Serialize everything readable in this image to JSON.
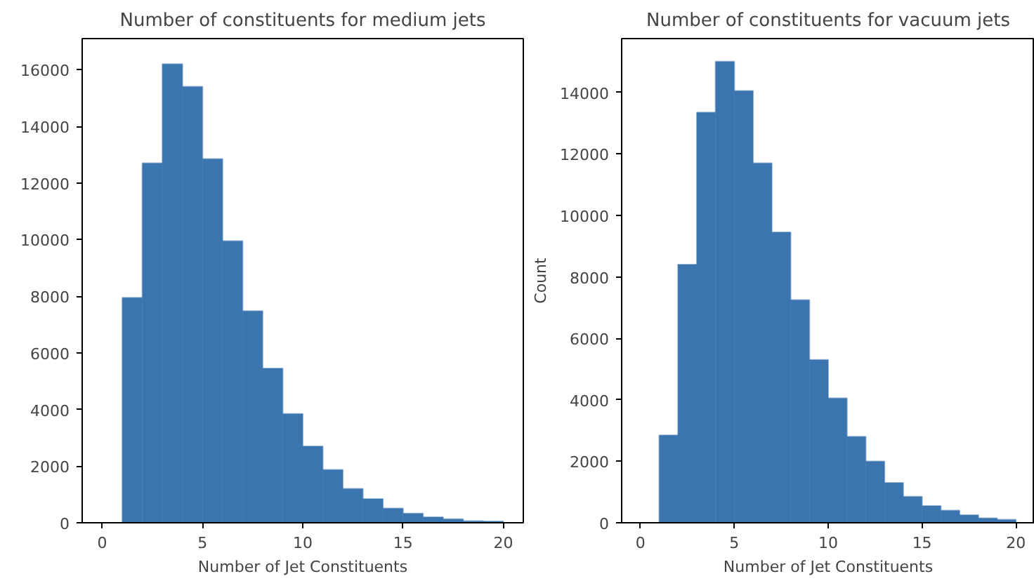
{
  "chart_data": [
    {
      "type": "histogram",
      "title": "Number of constituents for medium jets",
      "xlabel": "Number of Jet Constituents",
      "bins": [
        1,
        2,
        3,
        4,
        5,
        6,
        7,
        8,
        9,
        10,
        11,
        12,
        13,
        14,
        15,
        16,
        17,
        18,
        19,
        20
      ],
      "values": [
        7950,
        12700,
        16200,
        15400,
        12850,
        9950,
        7480,
        5450,
        3850,
        2700,
        1870,
        1200,
        840,
        510,
        330,
        200,
        130,
        60,
        50
      ],
      "color": "#3b75af",
      "xlim": [
        -1,
        21
      ],
      "xticks": [
        0,
        5,
        10,
        15,
        20
      ],
      "ylim": [
        0,
        17100
      ],
      "yticks": [
        0,
        2000,
        4000,
        6000,
        8000,
        10000,
        12000,
        14000,
        16000
      ],
      "grid": false
    },
    {
      "type": "histogram",
      "title": "Number of constituents for vacuum jets",
      "xlabel": "Number of Jet Constituents",
      "ylabel": "Count",
      "bins": [
        1,
        2,
        3,
        4,
        5,
        6,
        7,
        8,
        9,
        10,
        11,
        12,
        13,
        14,
        15,
        16,
        17,
        18,
        19,
        20
      ],
      "values": [
        2850,
        8400,
        13350,
        15000,
        14050,
        11700,
        9450,
        7250,
        5300,
        4050,
        2800,
        2000,
        1300,
        850,
        550,
        400,
        250,
        150,
        100
      ],
      "color": "#3b75af",
      "xlim": [
        -1,
        21
      ],
      "xticks": [
        0,
        5,
        10,
        15,
        20
      ],
      "ylim": [
        0,
        15750
      ],
      "yticks": [
        0,
        2000,
        4000,
        6000,
        8000,
        10000,
        12000,
        14000
      ],
      "grid": false
    }
  ]
}
